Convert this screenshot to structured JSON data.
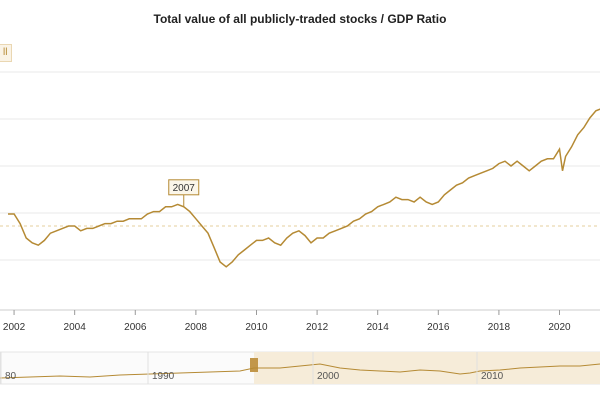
{
  "chart_data": {
    "type": "line",
    "title": "Total value of all publicly-traded stocks / GDP Ratio",
    "legend_stub": "ll",
    "colors": {
      "line": "#b58a34",
      "grid": "#e8e8e8",
      "navigator_fill": "#f6ecd9",
      "annotation_bg": "#fbf6e9"
    },
    "xlim": [
      2001.8,
      2021.6
    ],
    "ylim": [
      0,
      100
    ],
    "y_unit_note": "",
    "xticks": [
      "2002",
      "2004",
      "2006",
      "2008",
      "2010",
      "2012",
      "2014",
      "2016",
      "2018",
      "2020"
    ],
    "annotation": {
      "label": "2007",
      "x": 2007.6,
      "y": 43
    },
    "series": [
      {
        "x": [
          2001.8,
          2002.0,
          2002.2,
          2002.4,
          2002.6,
          2002.8,
          2003.0,
          2003.2,
          2003.4,
          2003.6,
          2003.8,
          2004.0,
          2004.2,
          2004.4,
          2004.6,
          2004.8,
          2005.0,
          2005.2,
          2005.4,
          2005.6,
          2005.8,
          2006.0,
          2006.2,
          2006.4,
          2006.6,
          2006.8,
          2007.0,
          2007.2,
          2007.4,
          2007.6,
          2007.8,
          2008.0,
          2008.2,
          2008.4,
          2008.6,
          2008.8,
          2009.0,
          2009.2,
          2009.4,
          2009.6,
          2009.8,
          2010.0,
          2010.2,
          2010.4,
          2010.6,
          2010.8,
          2011.0,
          2011.2,
          2011.4,
          2011.6,
          2011.8,
          2012.0,
          2012.2,
          2012.4,
          2012.6,
          2012.8,
          2013.0,
          2013.2,
          2013.4,
          2013.6,
          2013.8,
          2014.0,
          2014.2,
          2014.4,
          2014.6,
          2014.8,
          2015.0,
          2015.2,
          2015.4,
          2015.6,
          2015.8,
          2016.0,
          2016.2,
          2016.4,
          2016.6,
          2016.8,
          2017.0,
          2017.2,
          2017.4,
          2017.6,
          2017.8,
          2018.0,
          2018.2,
          2018.4,
          2018.6,
          2018.8,
          2019.0,
          2019.2,
          2019.4,
          2019.6,
          2019.8,
          2020.0,
          2020.1,
          2020.2,
          2020.4,
          2020.6,
          2020.8,
          2021.0,
          2021.2,
          2021.4,
          2021.6
        ],
        "y": [
          40,
          40,
          36,
          30,
          28,
          27,
          29,
          32,
          33,
          34,
          35,
          35,
          33,
          34,
          34,
          35,
          36,
          36,
          37,
          37,
          38,
          38,
          38,
          40,
          41,
          41,
          43,
          43,
          44,
          43,
          41,
          38,
          35,
          32,
          26,
          20,
          18,
          20,
          23,
          25,
          27,
          29,
          29,
          30,
          28,
          27,
          30,
          32,
          33,
          31,
          28,
          30,
          30,
          32,
          33,
          34,
          35,
          37,
          38,
          40,
          41,
          43,
          44,
          45,
          47,
          46,
          46,
          45,
          47,
          45,
          44,
          45,
          48,
          50,
          52,
          53,
          55,
          56,
          57,
          58,
          59,
          61,
          62,
          60,
          62,
          60,
          58,
          60,
          62,
          63,
          63,
          67,
          58,
          64,
          68,
          73,
          76,
          80,
          83,
          84,
          86
        ]
      }
    ],
    "navigator": {
      "ticks": [
        "80",
        "1990",
        "2000",
        "2010"
      ]
    }
  }
}
